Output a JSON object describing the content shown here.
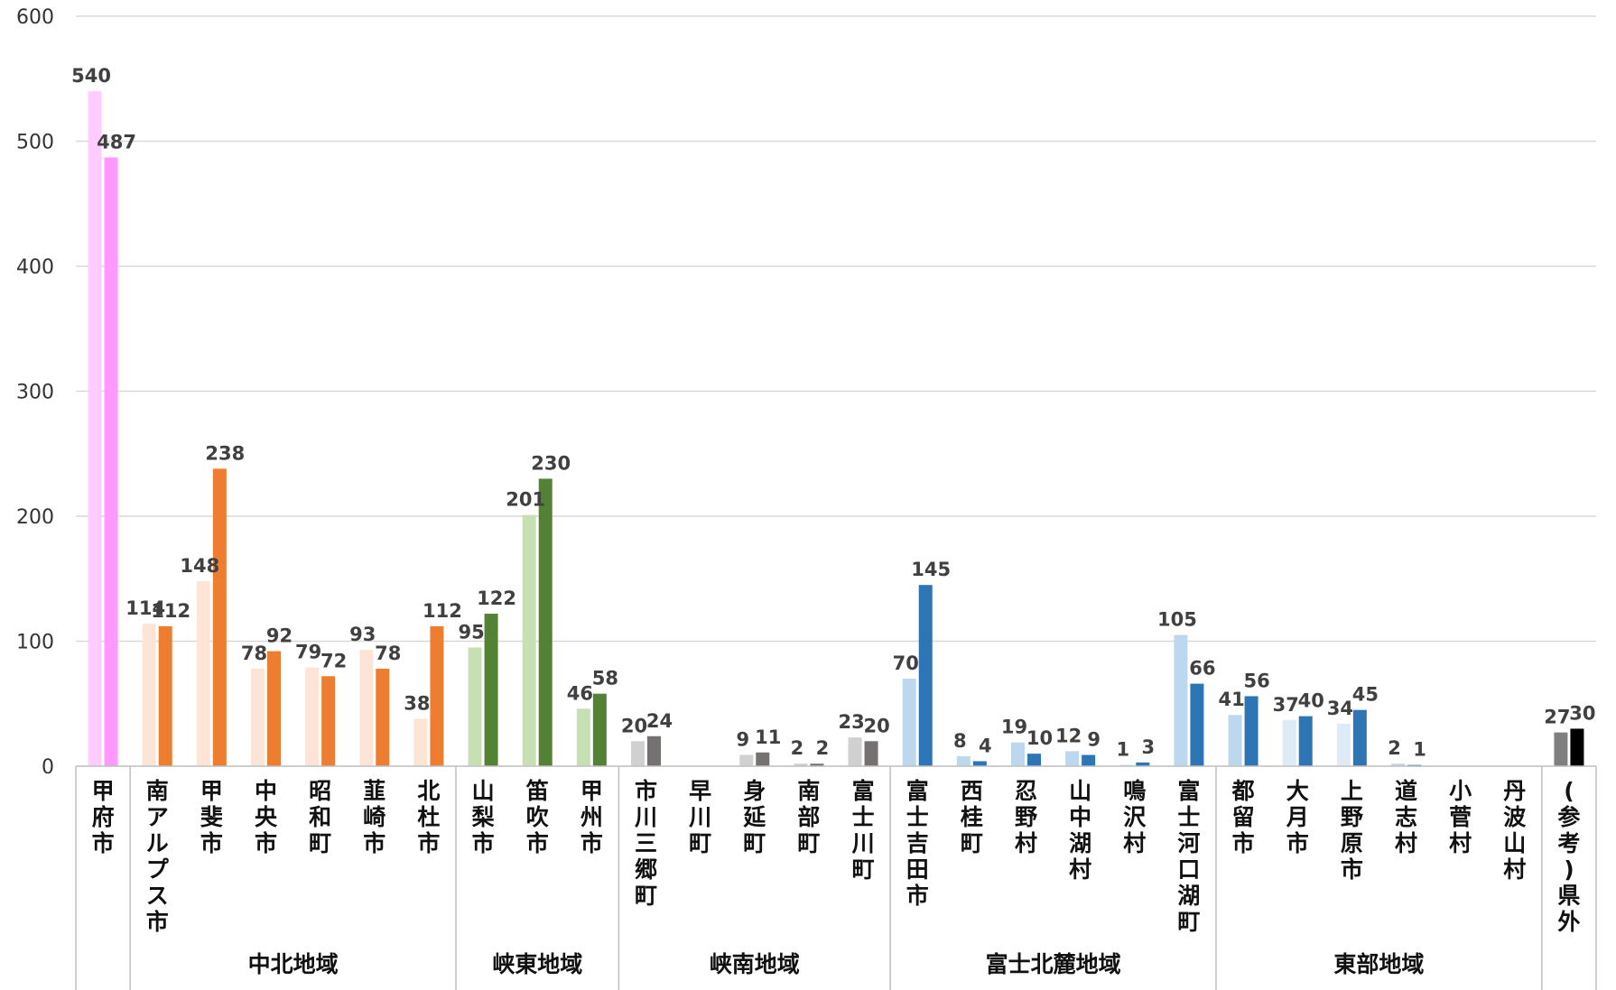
{
  "chart_data": {
    "type": "bar",
    "title": "",
    "xlabel": "",
    "ylabel": "",
    "ylim": [
      0,
      600
    ],
    "yticks": [
      "0",
      "100",
      "200",
      "300",
      "400",
      "500",
      "600"
    ],
    "grid": true,
    "legend": "none",
    "categories": [
      {
        "name": "甲府市",
        "region": 0,
        "values": [
          540,
          487
        ],
        "colors": [
          "#ffccff",
          "#ff99ff"
        ]
      },
      {
        "name": "南アルプス市",
        "region": 0,
        "values": [
          114,
          112
        ],
        "colors": [
          "#fce4d6",
          "#ed7d31"
        ]
      },
      {
        "name": "甲斐市",
        "region": 0,
        "values": [
          148,
          238
        ],
        "colors": [
          "#fce4d6",
          "#ed7d31"
        ]
      },
      {
        "name": "中央市",
        "region": 0,
        "values": [
          78,
          92
        ],
        "colors": [
          "#fce4d6",
          "#ed7d31"
        ]
      },
      {
        "name": "昭和町",
        "region": 0,
        "values": [
          79,
          72
        ],
        "colors": [
          "#fce4d6",
          "#ed7d31"
        ]
      },
      {
        "name": "韮崎市",
        "region": 0,
        "values": [
          93,
          78
        ],
        "colors": [
          "#fce4d6",
          "#ed7d31"
        ]
      },
      {
        "name": "北杜市",
        "region": 0,
        "values": [
          38,
          112
        ],
        "colors": [
          "#fce4d6",
          "#ed7d31"
        ]
      },
      {
        "name": "山梨市",
        "region": 1,
        "values": [
          95,
          122
        ],
        "colors": [
          "#c6e0b4",
          "#548235"
        ]
      },
      {
        "name": "笛吹市",
        "region": 1,
        "values": [
          201,
          230
        ],
        "colors": [
          "#c6e0b4",
          "#548235"
        ]
      },
      {
        "name": "甲州市",
        "region": 1,
        "values": [
          46,
          58
        ],
        "colors": [
          "#c6e0b4",
          "#548235"
        ]
      },
      {
        "name": "市川三郷町",
        "region": 2,
        "values": [
          20,
          24
        ],
        "colors": [
          "#d0d0d0",
          "#767171"
        ]
      },
      {
        "name": "早川町",
        "region": 2,
        "values": [
          null,
          null
        ],
        "colors": [
          "#d0d0d0",
          "#767171"
        ]
      },
      {
        "name": "身延町",
        "region": 2,
        "values": [
          9,
          11
        ],
        "colors": [
          "#d0d0d0",
          "#767171"
        ]
      },
      {
        "name": "南部町",
        "region": 2,
        "values": [
          2,
          2
        ],
        "colors": [
          "#d0d0d0",
          "#767171"
        ]
      },
      {
        "name": "富士川町",
        "region": 2,
        "values": [
          23,
          20
        ],
        "colors": [
          "#d0d0d0",
          "#767171"
        ]
      },
      {
        "name": "富士吉田市",
        "region": 3,
        "values": [
          70,
          145
        ],
        "colors": [
          "#bdd7ee",
          "#2e75b6"
        ]
      },
      {
        "name": "西桂町",
        "region": 3,
        "values": [
          8,
          4
        ],
        "colors": [
          "#bdd7ee",
          "#2e75b6"
        ]
      },
      {
        "name": "忍野村",
        "region": 3,
        "values": [
          19,
          10
        ],
        "colors": [
          "#bdd7ee",
          "#2e75b6"
        ]
      },
      {
        "name": "山中湖村",
        "region": 3,
        "values": [
          12,
          9
        ],
        "colors": [
          "#bdd7ee",
          "#2e75b6"
        ]
      },
      {
        "name": "鳴沢村",
        "region": 3,
        "values": [
          1,
          3
        ],
        "colors": [
          "#bdd7ee",
          "#2e75b6"
        ]
      },
      {
        "name": "富士河口湖町",
        "region": 3,
        "values": [
          105,
          66
        ],
        "colors": [
          "#bdd7ee",
          "#2e75b6"
        ]
      },
      {
        "name": "都留市",
        "region": 4,
        "values": [
          41,
          56
        ],
        "colors": [
          "#bdd7ee",
          "#2e75b6"
        ]
      },
      {
        "name": "大月市",
        "region": 4,
        "values": [
          37,
          40
        ],
        "colors": [
          "#ddebf7",
          "#2e75b6"
        ]
      },
      {
        "name": "上野原市",
        "region": 4,
        "values": [
          34,
          45
        ],
        "colors": [
          "#ddebf7",
          "#2e75b6"
        ]
      },
      {
        "name": "道志村",
        "region": 4,
        "values": [
          2,
          1
        ],
        "colors": [
          "#bdd7ee",
          "#2e75b6"
        ]
      },
      {
        "name": "小菅村",
        "region": 4,
        "values": [
          null,
          null
        ],
        "colors": [
          "#bdd7ee",
          "#2e75b6"
        ]
      },
      {
        "name": "丹波山村",
        "region": 4,
        "values": [
          null,
          null
        ],
        "colors": [
          "#bdd7ee",
          "#2e75b6"
        ]
      },
      {
        "name": "(参考)県外",
        "region": 5,
        "values": [
          27,
          30
        ],
        "colors": [
          "#7f7f7f",
          "#000000"
        ]
      }
    ],
    "regions": [
      {
        "name": "中北地域"
      },
      {
        "name": "峡東地域"
      },
      {
        "name": "峡南地域"
      },
      {
        "name": "富士北麓地域"
      },
      {
        "name": "東部地域"
      },
      {
        "name": ""
      }
    ]
  }
}
